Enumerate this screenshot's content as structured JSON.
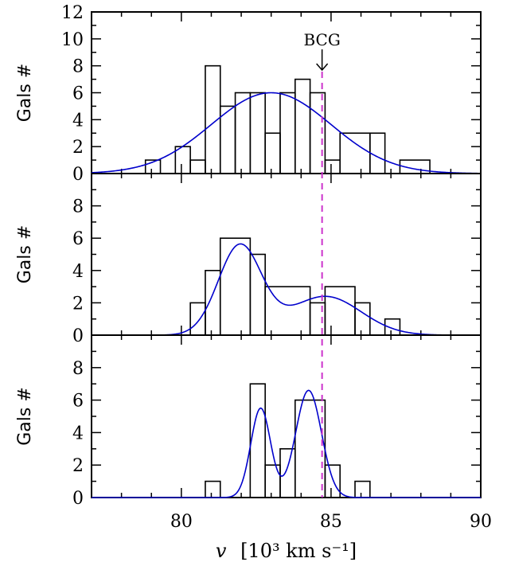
{
  "chart_data": {
    "type": "histogram",
    "xlabel_var": "v",
    "xlabel_unit": "[10³ km s⁻¹]",
    "xlim": [
      77,
      90
    ],
    "x_ticks": [
      80,
      85,
      90
    ],
    "bcg": {
      "label": "BCG",
      "x": 84.7,
      "color": "#cc33cc"
    },
    "colors": {
      "histogram": "#000000",
      "fit": "#0000cc"
    },
    "panels": [
      {
        "ylabel": "Gals #",
        "ylim": [
          0,
          12
        ],
        "y_ticks": [
          0,
          2,
          4,
          6,
          8,
          10,
          12
        ],
        "bins": [
          {
            "x0": 78.8,
            "x1": 79.3,
            "count": 1
          },
          {
            "x0": 79.8,
            "x1": 80.3,
            "count": 2
          },
          {
            "x0": 80.3,
            "x1": 80.8,
            "count": 1
          },
          {
            "x0": 80.8,
            "x1": 81.3,
            "count": 8
          },
          {
            "x0": 81.3,
            "x1": 81.8,
            "count": 5
          },
          {
            "x0": 81.8,
            "x1": 82.3,
            "count": 6
          },
          {
            "x0": 82.3,
            "x1": 82.8,
            "count": 6
          },
          {
            "x0": 82.8,
            "x1": 83.3,
            "count": 3
          },
          {
            "x0": 83.3,
            "x1": 83.8,
            "count": 6
          },
          {
            "x0": 83.8,
            "x1": 84.3,
            "count": 7
          },
          {
            "x0": 84.3,
            "x1": 84.8,
            "count": 6
          },
          {
            "x0": 84.8,
            "x1": 85.3,
            "count": 1
          },
          {
            "x0": 85.3,
            "x1": 86.3,
            "count": 3
          },
          {
            "x0": 86.3,
            "x1": 86.8,
            "count": 3
          },
          {
            "x0": 87.3,
            "x1": 88.3,
            "count": 1
          }
        ],
        "fit": {
          "components": [
            {
              "amp": 6.0,
              "mu": 83.0,
              "sigma": 2.0
            }
          ]
        }
      },
      {
        "ylabel": "Gals #",
        "ylim": [
          0,
          10
        ],
        "y_ticks": [
          0,
          2,
          4,
          6,
          8
        ],
        "bins": [
          {
            "x0": 80.3,
            "x1": 80.8,
            "count": 2
          },
          {
            "x0": 80.8,
            "x1": 81.3,
            "count": 4
          },
          {
            "x0": 81.3,
            "x1": 82.3,
            "count": 6
          },
          {
            "x0": 82.3,
            "x1": 82.8,
            "count": 5
          },
          {
            "x0": 82.8,
            "x1": 84.3,
            "count": 3
          },
          {
            "x0": 84.3,
            "x1": 84.8,
            "count": 2
          },
          {
            "x0": 84.8,
            "x1": 85.8,
            "count": 3
          },
          {
            "x0": 85.8,
            "x1": 86.3,
            "count": 2
          },
          {
            "x0": 86.3,
            "x1": 86.8,
            "count": 0
          },
          {
            "x0": 86.8,
            "x1": 87.3,
            "count": 1
          }
        ],
        "fit": {
          "components": [
            {
              "amp": 5.5,
              "mu": 81.95,
              "sigma": 0.72
            },
            {
              "amp": 2.4,
              "mu": 84.8,
              "sigma": 1.2
            }
          ]
        }
      },
      {
        "ylabel": "Gals #",
        "ylim": [
          0,
          10
        ],
        "y_ticks": [
          0,
          2,
          4,
          6,
          8
        ],
        "bins": [
          {
            "x0": 80.8,
            "x1": 81.3,
            "count": 1
          },
          {
            "x0": 82.3,
            "x1": 82.8,
            "count": 7
          },
          {
            "x0": 82.8,
            "x1": 83.3,
            "count": 2
          },
          {
            "x0": 83.3,
            "x1": 83.8,
            "count": 3
          },
          {
            "x0": 83.8,
            "x1": 84.8,
            "count": 6
          },
          {
            "x0": 84.8,
            "x1": 85.3,
            "count": 2
          },
          {
            "x0": 85.8,
            "x1": 86.3,
            "count": 1
          }
        ],
        "fit": {
          "components": [
            {
              "amp": 5.5,
              "mu": 82.65,
              "sigma": 0.33
            },
            {
              "amp": 6.6,
              "mu": 84.25,
              "sigma": 0.43
            }
          ]
        }
      }
    ]
  }
}
